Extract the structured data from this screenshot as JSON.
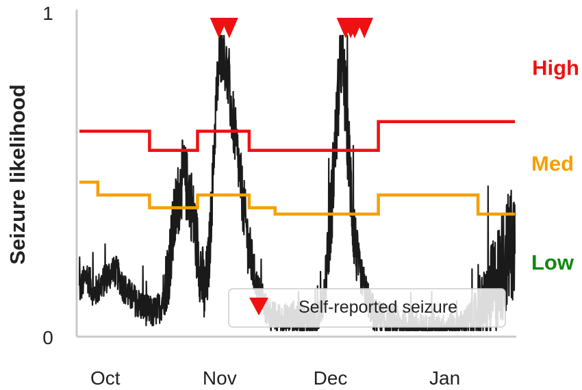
{
  "chart_data": {
    "type": "line",
    "ylabel": "Seizure likelihood",
    "ylim": [
      0,
      1
    ],
    "y_ticks": [
      "0",
      "1"
    ],
    "x_range_days": [
      0,
      118
    ],
    "x_ticks": [
      {
        "label": "Oct",
        "day": 7
      },
      {
        "label": "Nov",
        "day": 38
      },
      {
        "label": "Dec",
        "day": 68
      },
      {
        "label": "Jan",
        "day": 99
      }
    ],
    "level_labels": [
      {
        "text": "High",
        "color": "#ee1111",
        "y": 0.84
      },
      {
        "text": "Med",
        "color": "#f5a000",
        "y": 0.54
      },
      {
        "text": "Low",
        "color": "#118811",
        "y": 0.23
      }
    ],
    "series": [
      {
        "name": "likelihood",
        "color": "#1a1a1a",
        "anchors": [
          [
            0,
            0.14
          ],
          [
            2,
            0.19
          ],
          [
            4,
            0.13
          ],
          [
            6,
            0.16
          ],
          [
            8,
            0.19
          ],
          [
            10,
            0.2
          ],
          [
            12,
            0.15
          ],
          [
            14,
            0.12
          ],
          [
            16,
            0.1
          ],
          [
            18,
            0.08
          ],
          [
            20,
            0.07
          ],
          [
            22,
            0.09
          ],
          [
            24,
            0.2
          ],
          [
            26,
            0.38
          ],
          [
            28,
            0.5
          ],
          [
            30,
            0.44
          ],
          [
            32,
            0.27
          ],
          [
            34,
            0.12
          ],
          [
            35,
            0.22
          ],
          [
            36,
            0.45
          ],
          [
            37,
            0.72
          ],
          [
            38,
            0.88
          ],
          [
            39,
            0.9
          ],
          [
            40,
            0.82
          ],
          [
            41,
            0.72
          ],
          [
            42,
            0.64
          ],
          [
            43,
            0.55
          ],
          [
            44,
            0.45
          ],
          [
            46,
            0.26
          ],
          [
            48,
            0.16
          ],
          [
            50,
            0.09
          ],
          [
            52,
            0.06
          ],
          [
            54,
            0.05
          ],
          [
            56,
            0.05
          ],
          [
            58,
            0.06
          ],
          [
            60,
            0.05
          ],
          [
            62,
            0.04
          ],
          [
            64,
            0.05
          ],
          [
            66,
            0.1
          ],
          [
            68,
            0.35
          ],
          [
            70,
            0.72
          ],
          [
            71,
            0.88
          ],
          [
            72,
            0.75
          ],
          [
            74,
            0.38
          ],
          [
            75,
            0.26
          ],
          [
            76,
            0.2
          ],
          [
            78,
            0.12
          ],
          [
            80,
            0.06
          ],
          [
            82,
            0.05
          ],
          [
            84,
            0.04
          ],
          [
            86,
            0.04
          ],
          [
            88,
            0.03
          ],
          [
            90,
            0.03
          ],
          [
            92,
            0.02
          ],
          [
            94,
            0.02
          ],
          [
            96,
            0.02
          ],
          [
            98,
            0.02
          ],
          [
            100,
            0.03
          ],
          [
            102,
            0.03
          ],
          [
            104,
            0.04
          ],
          [
            106,
            0.05
          ],
          [
            108,
            0.07
          ],
          [
            110,
            0.1
          ],
          [
            112,
            0.14
          ],
          [
            114,
            0.2
          ],
          [
            116,
            0.26
          ],
          [
            118,
            0.3
          ]
        ],
        "noise": [
          [
            0,
            0.05
          ],
          [
            22,
            0.05
          ],
          [
            24,
            0.12
          ],
          [
            34,
            0.12
          ],
          [
            36,
            0.1
          ],
          [
            46,
            0.1
          ],
          [
            48,
            0.05
          ],
          [
            66,
            0.05
          ],
          [
            68,
            0.14
          ],
          [
            74,
            0.14
          ],
          [
            76,
            0.06
          ],
          [
            104,
            0.04
          ],
          [
            108,
            0.08
          ],
          [
            112,
            0.16
          ],
          [
            118,
            0.2
          ]
        ]
      },
      {
        "name": "High threshold",
        "color": "#ee1111",
        "steps": [
          [
            0,
            0.64
          ],
          [
            19,
            0.58
          ],
          [
            32,
            0.64
          ],
          [
            46,
            0.58
          ],
          [
            81,
            0.67
          ],
          [
            118,
            0.67
          ]
        ]
      },
      {
        "name": "Med threshold",
        "color": "#f5a000",
        "steps": [
          [
            0,
            0.48
          ],
          [
            5,
            0.44
          ],
          [
            19,
            0.4
          ],
          [
            32,
            0.44
          ],
          [
            46,
            0.4
          ],
          [
            53,
            0.38
          ],
          [
            81,
            0.44
          ],
          [
            108,
            0.38
          ],
          [
            118,
            0.38
          ]
        ]
      }
    ],
    "seizures": [
      {
        "day": 37.8
      },
      {
        "day": 40.6
      },
      {
        "day": 72.1
      },
      {
        "day": 73.5
      },
      {
        "day": 74.6
      },
      {
        "day": 77.2
      }
    ],
    "seizure_color": "#ee1111",
    "legend": {
      "text": "Self-reported seizure",
      "position": "bottom-right"
    }
  }
}
